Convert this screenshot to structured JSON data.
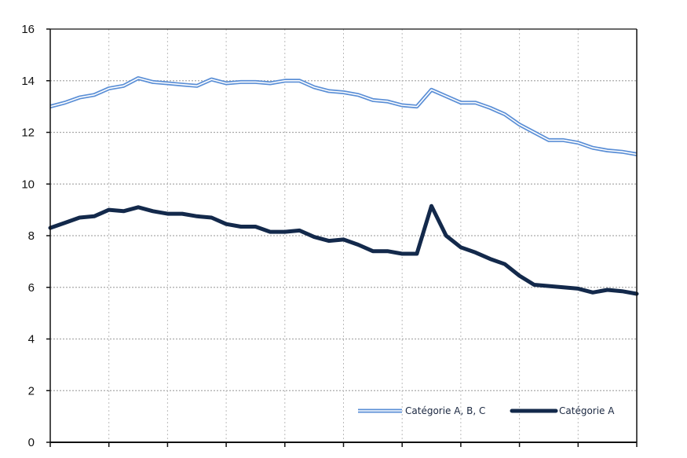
{
  "chart_data": {
    "type": "line",
    "title": "",
    "xlabel": "",
    "ylabel": "",
    "ylim": [
      0,
      16
    ],
    "yticks": [
      "0",
      "2",
      "4",
      "6",
      "8",
      "10",
      "12",
      "14",
      "16"
    ],
    "grid": true,
    "legend_position": "bottom-right",
    "x_count": 41,
    "series": [
      {
        "name": "Catégorie A, B, C",
        "color": "#5b8fd6",
        "style": "double",
        "values": [
          13.0,
          13.15,
          13.35,
          13.45,
          13.7,
          13.8,
          14.1,
          13.95,
          13.9,
          13.85,
          13.8,
          14.05,
          13.9,
          13.95,
          13.95,
          13.9,
          14.0,
          14.0,
          13.75,
          13.6,
          13.55,
          13.45,
          13.25,
          13.2,
          13.05,
          13.0,
          13.65,
          13.4,
          13.15,
          13.15,
          12.95,
          12.7,
          12.3,
          12.0,
          11.7,
          11.7,
          11.6,
          11.4,
          11.3,
          11.25,
          11.15
        ]
      },
      {
        "name": "Catégorie A",
        "color": "#13294b",
        "style": "solid",
        "values": [
          8.3,
          8.5,
          8.7,
          8.75,
          9.0,
          8.95,
          9.1,
          8.95,
          8.85,
          8.85,
          8.75,
          8.7,
          8.45,
          8.35,
          8.35,
          8.15,
          8.15,
          8.2,
          7.95,
          7.8,
          7.85,
          7.65,
          7.4,
          7.4,
          7.3,
          7.3,
          9.15,
          8.0,
          7.55,
          7.35,
          7.1,
          6.9,
          6.45,
          6.1,
          6.05,
          6.0,
          5.95,
          5.8,
          5.9,
          5.85,
          5.75
        ]
      }
    ]
  }
}
